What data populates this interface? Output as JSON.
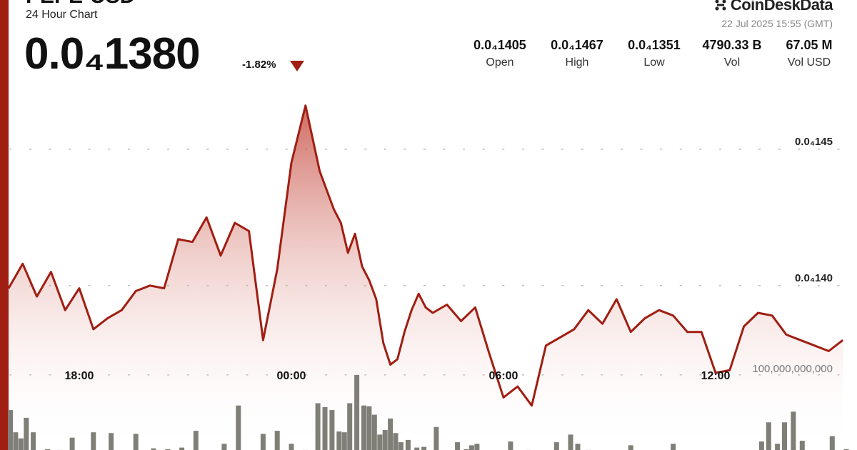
{
  "header": {
    "title": "PEPE-USD",
    "subtitle": "24 Hour Chart",
    "price": "0.0₄1380",
    "change": "-1.82%"
  },
  "brand": {
    "logo_text": "CoinDeskData",
    "timestamp": "22 Jul 2025 15:55 (GMT)"
  },
  "stats": [
    {
      "value": "0.0₄1405",
      "label": "Open"
    },
    {
      "value": "0.0₄1467",
      "label": "High"
    },
    {
      "value": "0.0₄1351",
      "label": "Low"
    },
    {
      "value": "4790.33 B",
      "label": "Vol"
    },
    {
      "value": "67.05 M",
      "label": "Vol USD"
    }
  ],
  "colors": {
    "accent": "#a01e12",
    "area_top": "#c0392b",
    "volume_bar": "#7f7f77",
    "grid": "#bdbdbd"
  },
  "chart_data": {
    "type": "area",
    "title": "",
    "xlabel": "",
    "ylabel": "",
    "x_tick_labels": [
      "18:00",
      "00:00",
      "06:00",
      "12:00"
    ],
    "x_tick_hours": [
      2.0,
      8.0,
      14.0,
      20.0
    ],
    "y_tick_labels": [
      "0.0₄145",
      "0.0₄140"
    ],
    "y_tick_values": [
      1.45e-05,
      1.4e-05
    ],
    "ylim": [
      1.335e-05,
      1.5e-05
    ],
    "grid": true,
    "series": [
      {
        "type": "area",
        "x_hours": [
          0.0,
          0.4,
          0.8,
          1.2,
          1.6,
          2.0,
          2.4,
          2.8,
          3.2,
          3.6,
          4.0,
          4.4,
          4.8,
          5.2,
          5.6,
          6.0,
          6.4,
          6.8,
          7.2,
          7.6,
          8.0,
          8.4,
          8.8,
          9.2,
          9.4,
          9.6,
          9.8,
          10.0,
          10.2,
          10.4,
          10.6,
          10.8,
          11.0,
          11.2,
          11.4,
          11.6,
          11.8,
          12.0,
          12.4,
          12.8,
          13.2,
          13.6,
          14.0,
          14.4,
          14.8,
          15.2,
          15.6,
          16.0,
          16.4,
          16.8,
          17.2,
          17.6,
          18.0,
          18.4,
          18.8,
          19.2,
          19.6,
          20.0,
          20.4,
          20.8,
          21.2,
          21.6,
          22.0,
          22.4,
          22.8,
          23.2,
          23.6
        ],
        "values": [
          1.399e-05,
          1.408e-05,
          1.396e-05,
          1.405e-05,
          1.391e-05,
          1.399e-05,
          1.384e-05,
          1.388e-05,
          1.391e-05,
          1.398e-05,
          1.4e-05,
          1.399e-05,
          1.417e-05,
          1.416e-05,
          1.425e-05,
          1.411e-05,
          1.423e-05,
          1.42e-05,
          1.38e-05,
          1.406e-05,
          1.445e-05,
          1.466e-05,
          1.442e-05,
          1.428e-05,
          1.423e-05,
          1.412e-05,
          1.419e-05,
          1.407e-05,
          1.402e-05,
          1.395e-05,
          1.379e-05,
          1.371e-05,
          1.373e-05,
          1.383e-05,
          1.391e-05,
          1.397e-05,
          1.392e-05,
          1.39e-05,
          1.393e-05,
          1.387e-05,
          1.392e-05,
          1.375e-05,
          1.359e-05,
          1.363e-05,
          1.356e-05,
          1.378e-05,
          1.381e-05,
          1.384e-05,
          1.391e-05,
          1.386e-05,
          1.395e-05,
          1.383e-05,
          1.388e-05,
          1.391e-05,
          1.389e-05,
          1.383e-05,
          1.383e-05,
          1.368e-05,
          1.369e-05,
          1.385e-05,
          1.39e-05,
          1.389e-05,
          1.382e-05,
          1.38e-05,
          1.378e-05,
          1.376e-05,
          1.38e-05
        ]
      },
      {
        "type": "bar",
        "name": "Volume",
        "y_tick_labels": [
          "100,000,000,000"
        ],
        "y_tick_values": [
          100000000000
        ],
        "ylim": [
          0,
          112000000000
        ],
        "x_hours": [
          0.05,
          0.2,
          0.35,
          0.5,
          0.7,
          1.1,
          1.45,
          1.8,
          2.4,
          2.9,
          3.6,
          4.1,
          4.5,
          4.9,
          5.3,
          6.1,
          6.5,
          7.2,
          7.6,
          8.0,
          8.4,
          8.75,
          8.95,
          9.15,
          9.35,
          9.5,
          9.65,
          9.85,
          10.05,
          10.2,
          10.35,
          10.5,
          10.65,
          10.8,
          10.95,
          11.1,
          11.3,
          11.55,
          11.75,
          12.1,
          12.7,
          12.95,
          13.1,
          13.25,
          14.2,
          14.7,
          15.5,
          15.9,
          16.1,
          16.4,
          17.6,
          18.8,
          21.3,
          21.5,
          21.75,
          21.95,
          22.2,
          22.45,
          23.3,
          23.7
        ],
        "values": [
          54000000000,
          25000000000,
          17000000000,
          44000000000,
          25000000000,
          3000000000,
          2000000000,
          18000000000,
          25000000000,
          24000000000,
          23000000000,
          4000000000,
          3000000000,
          5000000000,
          27000000000,
          10000000000,
          60000000000,
          23000000000,
          27000000000,
          10000000000,
          2000000000,
          63000000000,
          58000000000,
          54000000000,
          26000000000,
          25000000000,
          63000000000,
          100000000000,
          60000000000,
          59000000000,
          48000000000,
          22000000000,
          28000000000,
          43000000000,
          24000000000,
          12000000000,
          15000000000,
          5000000000,
          6000000000,
          32000000000,
          12000000000,
          3000000000,
          8000000000,
          10000000000,
          13000000000,
          2000000000,
          12000000000,
          22000000000,
          10000000000,
          2000000000,
          8000000000,
          10000000000,
          13000000000,
          38000000000,
          10000000000,
          38000000000,
          52000000000,
          14000000000,
          20000000000,
          3000000000
        ]
      }
    ]
  }
}
